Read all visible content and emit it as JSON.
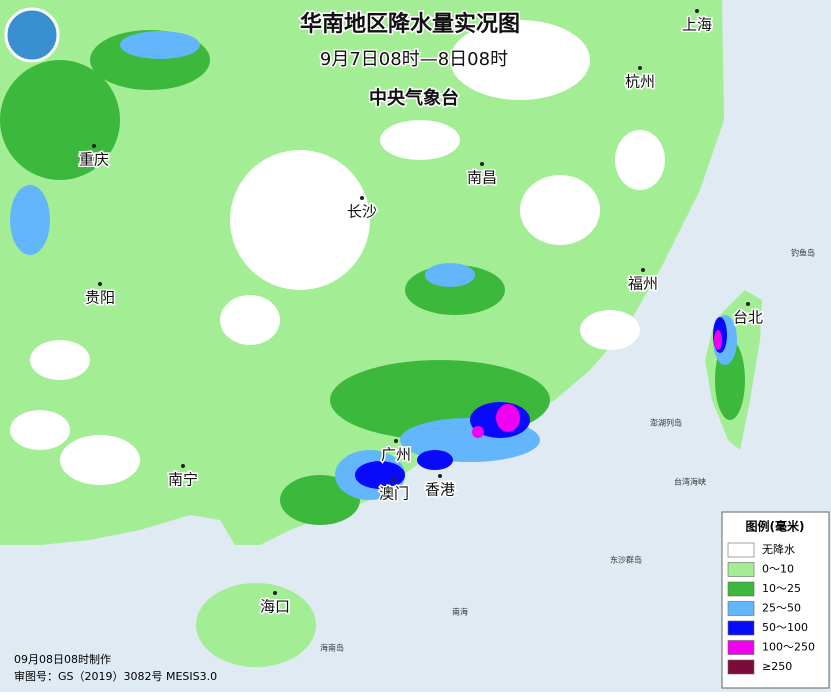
{
  "title": "华南地区降水量实况图",
  "subtitle": "9月7日08时—8日08时",
  "agency": "中央气象台",
  "cities": [
    "重庆",
    "长沙",
    "南昌",
    "杭州",
    "上海",
    "福州",
    "台北",
    "贵阳",
    "南宁",
    "广州",
    "澳门",
    "香港",
    "海口"
  ],
  "places": [
    "钓鱼岛",
    "澎湖列岛",
    "台湾海峡",
    "东沙群岛",
    "南海",
    "海南岛"
  ],
  "legend": {
    "title": "图例(毫米)",
    "items": [
      {
        "label": "无降水",
        "color": "#ffffff"
      },
      {
        "label": "0～10",
        "color": "#a3ee94"
      },
      {
        "label": "10～25",
        "color": "#3cb83c"
      },
      {
        "label": "25～50",
        "color": "#63b6fb"
      },
      {
        "label": "50～100",
        "color": "#0a0afa"
      },
      {
        "label": "100～250",
        "color": "#f200f2"
      },
      {
        "label": "≥250",
        "color": "#7d0a3c"
      }
    ]
  },
  "footer": {
    "made": "09月08日08时制作",
    "review": "审图号：GS（2019）3082号 MESIS3.0"
  }
}
